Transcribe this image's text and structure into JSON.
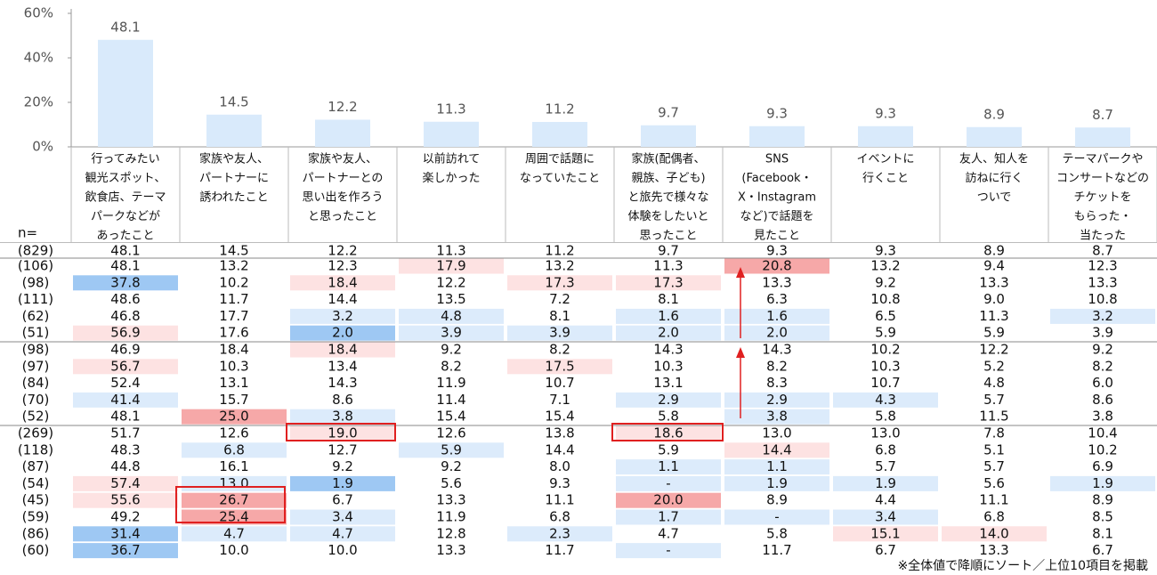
{
  "chart_data": {
    "type": "bar",
    "categories": [
      [
        "行ってみたい",
        "観光スポット、",
        "飲食店、テーマ",
        "パークなどが",
        "あったこと"
      ],
      [
        "家族や友人、",
        "パートナーに",
        "誘われたこと"
      ],
      [
        "家族や友人、",
        "パートナーとの",
        "思い出を作ろう",
        "と思ったこと"
      ],
      [
        "以前訪れて",
        "楽しかった"
      ],
      [
        "周囲で話題に",
        "なっていたこと"
      ],
      [
        "家族(配偶者、",
        "親族、子ども)",
        "と旅先で様々な",
        "体験をしたいと",
        "思ったこと"
      ],
      [
        "SNS",
        "(Facebook・",
        "X・Instagram",
        "など)で話題を",
        "見たこと"
      ],
      [
        "イベントに",
        "行くこと"
      ],
      [
        "友人、知人を",
        "訪ねに行く",
        "ついで"
      ],
      [
        "テーマパークや",
        "コンサートなどの",
        "チケットを",
        "もらった・",
        "当たった"
      ]
    ],
    "values": [
      48.1,
      14.5,
      12.2,
      11.3,
      11.2,
      9.7,
      9.3,
      9.3,
      8.9,
      8.7
    ],
    "color": "#d9eafb",
    "ylim": [
      0,
      60
    ],
    "yticks": [
      {
        "value": 0,
        "label": "0%"
      },
      {
        "value": 20,
        "label": "20%"
      },
      {
        "value": 40,
        "label": "40%"
      },
      {
        "value": 60,
        "label": "60%"
      }
    ],
    "grid": false
  },
  "table": {
    "n_label": "n=",
    "total_n": "(829)",
    "rows": [
      {
        "n": "(106)",
        "cells": [
          "48.1",
          "13.2",
          "12.3",
          "17.9",
          "13.2",
          "11.3",
          "20.8",
          "13.2",
          "9.4",
          "12.3"
        ],
        "shades": [
          null,
          null,
          null,
          "#fde2e2",
          null,
          null,
          "#f6a8a8",
          null,
          null,
          null
        ]
      },
      {
        "n": "(98)",
        "cells": [
          "37.8",
          "10.2",
          "18.4",
          "12.2",
          "17.3",
          "17.3",
          "13.3",
          "9.2",
          "13.3",
          "13.3"
        ],
        "shades": [
          "#9ec8f3",
          null,
          "#fde2e2",
          null,
          "#fde2e2",
          "#fde2e2",
          null,
          null,
          null,
          null
        ]
      },
      {
        "n": "(111)",
        "cells": [
          "48.6",
          "11.7",
          "14.4",
          "13.5",
          "7.2",
          "8.1",
          "6.3",
          "10.8",
          "9.0",
          "10.8"
        ],
        "shades": [
          null,
          null,
          null,
          null,
          null,
          null,
          null,
          null,
          null,
          null
        ]
      },
      {
        "n": "(62)",
        "cells": [
          "46.8",
          "17.7",
          "3.2",
          "4.8",
          "8.1",
          "1.6",
          "1.6",
          "6.5",
          "11.3",
          "3.2"
        ],
        "shades": [
          null,
          null,
          "#dcebfb",
          "#dcebfb",
          null,
          "#dcebfb",
          "#dcebfb",
          null,
          null,
          "#dcebfb"
        ]
      },
      {
        "n": "(51)",
        "cells": [
          "56.9",
          "17.6",
          "2.0",
          "3.9",
          "3.9",
          "2.0",
          "2.0",
          "5.9",
          "5.9",
          "3.9"
        ],
        "shades": [
          "#fde2e2",
          null,
          "#9ec8f3",
          "#dcebfb",
          "#dcebfb",
          "#dcebfb",
          "#dcebfb",
          null,
          null,
          null
        ]
      },
      {
        "n": "(98)",
        "cells": [
          "46.9",
          "18.4",
          "18.4",
          "9.2",
          "8.2",
          "14.3",
          "14.3",
          "10.2",
          "12.2",
          "9.2"
        ],
        "shades": [
          null,
          null,
          "#fde2e2",
          null,
          null,
          null,
          null,
          null,
          null,
          null
        ]
      },
      {
        "n": "(97)",
        "cells": [
          "56.7",
          "10.3",
          "13.4",
          "8.2",
          "17.5",
          "10.3",
          "8.2",
          "10.3",
          "5.2",
          "8.2"
        ],
        "shades": [
          "#fde2e2",
          null,
          null,
          null,
          "#fde2e2",
          null,
          null,
          null,
          null,
          null
        ]
      },
      {
        "n": "(84)",
        "cells": [
          "52.4",
          "13.1",
          "14.3",
          "11.9",
          "10.7",
          "13.1",
          "8.3",
          "10.7",
          "4.8",
          "6.0"
        ],
        "shades": [
          null,
          null,
          null,
          null,
          null,
          null,
          null,
          null,
          null,
          null
        ]
      },
      {
        "n": "(70)",
        "cells": [
          "41.4",
          "15.7",
          "8.6",
          "11.4",
          "7.1",
          "2.9",
          "2.9",
          "4.3",
          "5.7",
          "8.6"
        ],
        "shades": [
          "#dcebfb",
          null,
          null,
          null,
          null,
          "#dcebfb",
          "#dcebfb",
          "#dcebfb",
          null,
          null
        ]
      },
      {
        "n": "(52)",
        "cells": [
          "48.1",
          "25.0",
          "3.8",
          "15.4",
          "15.4",
          "5.8",
          "3.8",
          "5.8",
          "11.5",
          "3.8"
        ],
        "shades": [
          null,
          "#f6a8a8",
          "#dcebfb",
          null,
          null,
          null,
          "#dcebfb",
          null,
          null,
          null
        ]
      },
      {
        "n": "(269)",
        "cells": [
          "51.7",
          "12.6",
          "19.0",
          "12.6",
          "13.8",
          "18.6",
          "13.0",
          "13.0",
          "7.8",
          "10.4"
        ],
        "shades": [
          null,
          null,
          "#fde2e2",
          null,
          null,
          "#fde2e2",
          null,
          null,
          null,
          null
        ]
      },
      {
        "n": "(118)",
        "cells": [
          "48.3",
          "6.8",
          "12.7",
          "5.9",
          "14.4",
          "5.9",
          "14.4",
          "6.8",
          "5.1",
          "10.2"
        ],
        "shades": [
          null,
          "#dcebfb",
          null,
          "#dcebfb",
          null,
          null,
          "#fde2e2",
          null,
          null,
          null
        ]
      },
      {
        "n": "(87)",
        "cells": [
          "44.8",
          "16.1",
          "9.2",
          "9.2",
          "8.0",
          "1.1",
          "1.1",
          "5.7",
          "5.7",
          "6.9"
        ],
        "shades": [
          null,
          null,
          null,
          null,
          null,
          "#dcebfb",
          "#dcebfb",
          null,
          null,
          null
        ]
      },
      {
        "n": "(54)",
        "cells": [
          "57.4",
          "13.0",
          "1.9",
          "5.6",
          "9.3",
          "-",
          "1.9",
          "1.9",
          "5.6",
          "1.9"
        ],
        "shades": [
          "#fde2e2",
          "#dcebfb",
          "#9ec8f3",
          null,
          null,
          "#dcebfb",
          "#dcebfb",
          "#dcebfb",
          null,
          "#dcebfb"
        ]
      },
      {
        "n": "(45)",
        "cells": [
          "55.6",
          "26.7",
          "6.7",
          "13.3",
          "11.1",
          "20.0",
          "8.9",
          "4.4",
          "11.1",
          "8.9"
        ],
        "shades": [
          "#fde2e2",
          "#f6a8a8",
          null,
          null,
          null,
          "#f6a8a8",
          null,
          null,
          null,
          null
        ]
      },
      {
        "n": "(59)",
        "cells": [
          "49.2",
          "25.4",
          "3.4",
          "11.9",
          "6.8",
          "1.7",
          "-",
          "3.4",
          "6.8",
          "8.5"
        ],
        "shades": [
          null,
          "#f6a8a8",
          "#dcebfb",
          null,
          null,
          "#dcebfb",
          "#dcebfb",
          "#dcebfb",
          null,
          null
        ]
      },
      {
        "n": "(86)",
        "cells": [
          "31.4",
          "4.7",
          "4.7",
          "12.8",
          "2.3",
          "4.7",
          "5.8",
          "15.1",
          "14.0",
          "8.1"
        ],
        "shades": [
          "#9ec8f3",
          "#dcebfb",
          "#dcebfb",
          null,
          "#dcebfb",
          null,
          null,
          "#fde2e2",
          "#fde2e2",
          null
        ]
      },
      {
        "n": "(60)",
        "cells": [
          "36.7",
          "10.0",
          "10.0",
          "13.3",
          "11.7",
          "-",
          "11.7",
          "6.7",
          "13.3",
          "6.7"
        ],
        "shades": [
          "#9ec8f3",
          null,
          null,
          null,
          null,
          "#dcebfb",
          null,
          null,
          null,
          null
        ]
      }
    ]
  },
  "footnote": "※全体値で降順にソート／上位10項目を掲載"
}
